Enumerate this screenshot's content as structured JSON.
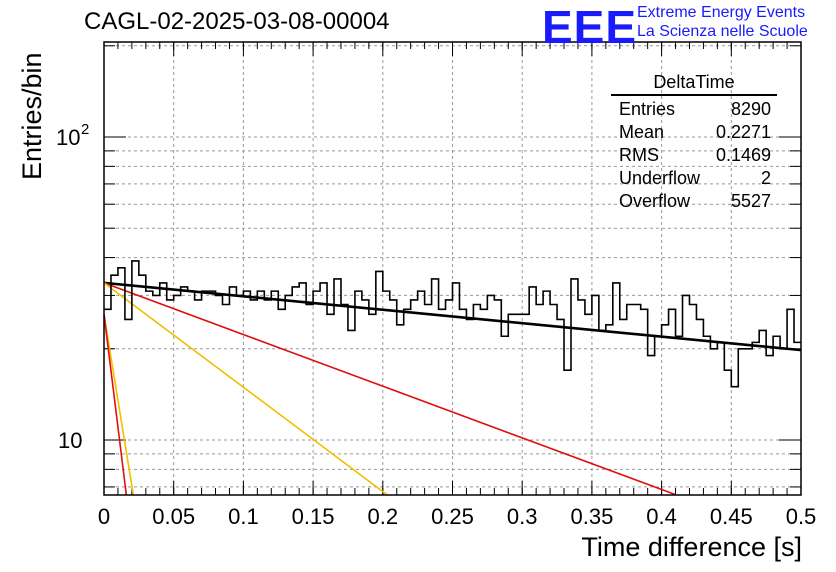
{
  "chart_data": {
    "type": "histogram",
    "title": "CAGL-02-2025-03-08-00004",
    "xlabel": "Time difference [s]",
    "ylabel": "Entries/bin",
    "xlim": [
      0,
      0.5
    ],
    "ylim": [
      6.6,
      200
    ],
    "yscale": "log",
    "grid": true,
    "x_ticks": [
      "0",
      "0.05",
      "0.1",
      "0.15",
      "0.2",
      "0.25",
      "0.3",
      "0.35",
      "0.4",
      "0.45",
      "0.5"
    ],
    "y_ticks": [
      "10",
      "10^2"
    ],
    "bin_width": 0.005,
    "bin_counts": [
      27,
      35,
      37,
      25,
      39,
      35,
      31,
      30,
      33,
      29,
      30,
      32,
      31,
      29,
      31,
      31,
      30,
      28,
      32,
      30,
      31,
      29,
      31,
      29,
      31,
      27,
      30,
      32,
      33,
      28,
      31,
      33,
      26,
      34,
      28,
      23,
      31,
      29,
      26,
      36,
      31,
      29,
      24,
      27,
      29,
      31,
      28,
      34,
      27,
      29,
      33,
      27,
      25,
      28,
      27,
      30,
      29,
      22,
      26,
      26,
      26,
      32,
      28,
      31,
      28,
      25,
      17,
      34,
      29,
      26,
      30,
      23,
      24,
      33,
      25,
      28,
      28,
      27,
      19,
      22,
      24,
      27,
      22,
      30,
      28,
      25,
      22,
      20,
      21,
      17,
      15,
      20,
      20,
      21,
      23,
      19,
      22,
      20,
      27,
      21
    ],
    "fit_lines": [
      {
        "color": "#000000",
        "y0": 33,
        "y1": 19.8,
        "x0": 0,
        "x1": 0.5
      },
      {
        "color": "#dd1111",
        "y0": 33,
        "y1": 6.6,
        "x0": 0,
        "x1": 0.41
      },
      {
        "color": "#f0c000",
        "y0": 33,
        "y1": 6.6,
        "x0": 0,
        "x1": 0.203
      },
      {
        "color": "#f0c000",
        "y0": 26,
        "y1": 6.6,
        "x0": 0,
        "x1": 0.021
      },
      {
        "color": "#dd1111",
        "y0": 26,
        "y1": 6.6,
        "x0": 0,
        "x1": 0.016
      }
    ]
  },
  "stats": {
    "name": "DeltaTime",
    "rows": [
      {
        "label": "Entries",
        "value": "8290"
      },
      {
        "label": "Mean",
        "value": "0.2271"
      },
      {
        "label": "RMS",
        "value": "0.1469"
      },
      {
        "label": "Underflow",
        "value": "2"
      },
      {
        "label": "Overflow",
        "value": "5527"
      }
    ]
  },
  "logo": {
    "mark": "EEE",
    "line1": "Extreme Energy Events",
    "line2": "La Scienza nelle Scuole"
  }
}
